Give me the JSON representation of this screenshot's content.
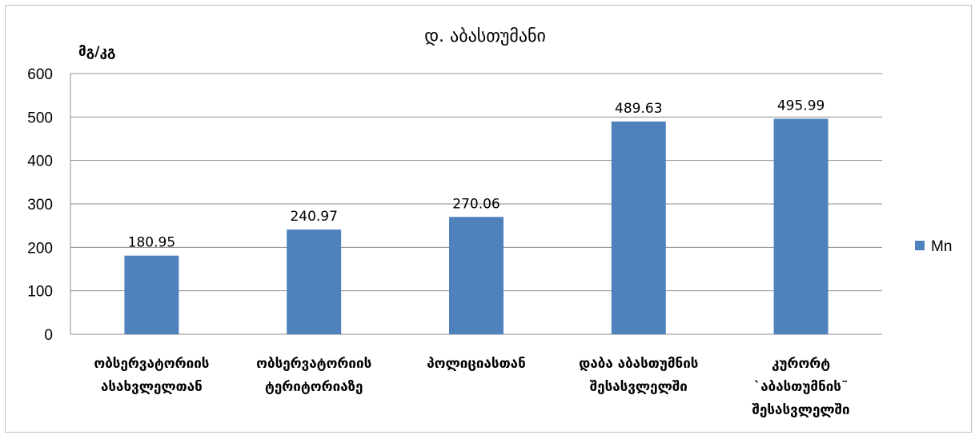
{
  "chart_data": {
    "type": "bar",
    "title": "დ. აბასთუმანი",
    "ylabel": "მგ/კგ",
    "xlabel": "",
    "ylim": [
      0,
      600
    ],
    "yticks": [
      0,
      100,
      200,
      300,
      400,
      500,
      600
    ],
    "grid": true,
    "legend_position": "right",
    "categories": [
      [
        "ობსერვატორიის",
        "ასახვლელთან"
      ],
      [
        "ობსერვატორიის",
        "ტერიტორიაზე"
      ],
      [
        "პოლიციასთან"
      ],
      [
        "დაბა აბასთუმნის",
        "შესასვლელში"
      ],
      [
        "კურორტ",
        "`აბასთუმნის˜",
        "შესასვლელში"
      ]
    ],
    "series": [
      {
        "name": "Mn",
        "color": "#4f81bd",
        "values": [
          180.95,
          240.97,
          270.06,
          489.63,
          495.99
        ]
      }
    ],
    "value_labels": [
      "180.95",
      "240.97",
      "270.06",
      "489.63",
      "495.99"
    ]
  }
}
